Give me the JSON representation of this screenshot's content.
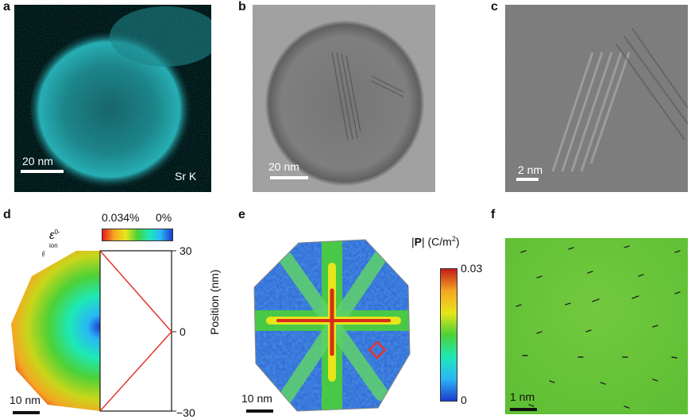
{
  "panels": {
    "a": {
      "label": "a",
      "scale_bar": "20 nm",
      "element": "Sr K",
      "accent": "#35d0d8"
    },
    "b": {
      "label": "b",
      "scale_bar": "20 nm"
    },
    "c": {
      "label": "c",
      "scale_bar": "2 nm"
    },
    "d": {
      "label": "d",
      "strain_symbol": "ε",
      "strain_sup": "0-ion",
      "strain_sub": "ij",
      "colorbar_max": "0.034%",
      "colorbar_min": "0%",
      "axis_label": "Position (nm)",
      "ticks": [
        "30",
        "0",
        "−30"
      ],
      "scale_bar": "10 nm",
      "profile_color": "#e3342f"
    },
    "e": {
      "label": "e",
      "quantity": "|P| (C/m²)",
      "quantity_parts": {
        "pre": "|",
        "bold": "P",
        "post": "| (C/m",
        "sup": "2",
        "end": ")"
      },
      "colorbar_max": "0.03",
      "colorbar_min": "0",
      "scale_bar": "10 nm",
      "marker_color": "#e3342f"
    },
    "f": {
      "label": "f",
      "scale_bar": "1 nm",
      "field_color": "#6cc63a"
    }
  }
}
